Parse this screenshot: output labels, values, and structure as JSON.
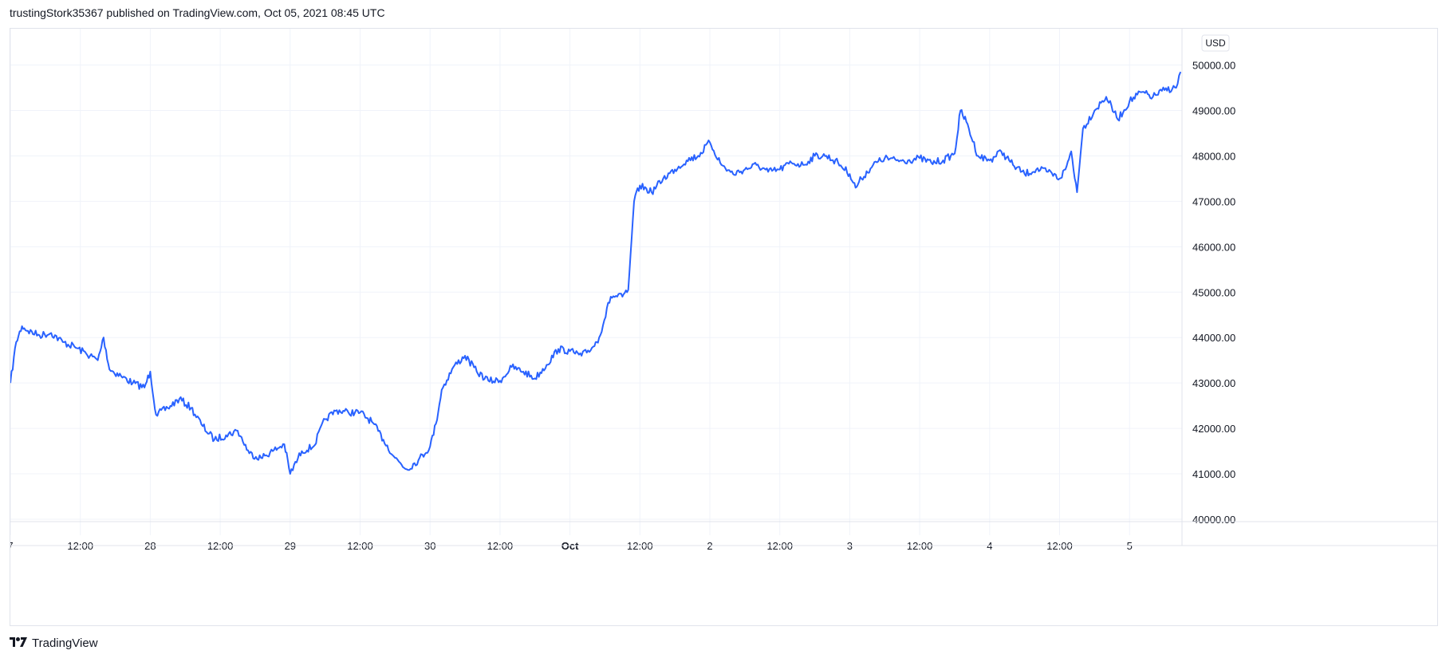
{
  "header": {
    "published_text": "trustingStork35367 published on TradingView.com, Oct 05, 2021 08:45 UTC"
  },
  "footer": {
    "brand_label": "TradingView",
    "logo_icon": "tradingview-logo-icon"
  },
  "colors": {
    "line": "#2962ff",
    "grid": "#f0f3fa",
    "border": "#e0e3eb",
    "text": "#131722"
  },
  "chart_data": {
    "type": "line",
    "currency_label": "USD",
    "ylim": [
      40000,
      50800
    ],
    "y_ticks": [
      40000,
      41000,
      42000,
      43000,
      44000,
      45000,
      46000,
      47000,
      48000,
      49000,
      50000
    ],
    "y_tick_labels": [
      "40000.00",
      "41000.00",
      "42000.00",
      "43000.00",
      "44000.00",
      "45000.00",
      "46000.00",
      "47000.00",
      "48000.00",
      "49000.00",
      "50000.00"
    ],
    "x_domain": [
      "2021-09-27T00:00",
      "2021-10-05T09:00"
    ],
    "x_ticks": [
      {
        "t": "2021-09-27T00:00",
        "label": "7",
        "bold": false
      },
      {
        "t": "2021-09-27T12:00",
        "label": "12:00",
        "bold": false
      },
      {
        "t": "2021-09-28T00:00",
        "label": "28",
        "bold": false
      },
      {
        "t": "2021-09-28T12:00",
        "label": "12:00",
        "bold": false
      },
      {
        "t": "2021-09-29T00:00",
        "label": "29",
        "bold": false
      },
      {
        "t": "2021-09-29T12:00",
        "label": "12:00",
        "bold": false
      },
      {
        "t": "2021-09-30T00:00",
        "label": "30",
        "bold": false
      },
      {
        "t": "2021-09-30T12:00",
        "label": "12:00",
        "bold": false
      },
      {
        "t": "2021-10-01T00:00",
        "label": "Oct",
        "bold": true
      },
      {
        "t": "2021-10-01T12:00",
        "label": "12:00",
        "bold": false
      },
      {
        "t": "2021-10-02T00:00",
        "label": "2",
        "bold": false
      },
      {
        "t": "2021-10-02T12:00",
        "label": "12:00",
        "bold": false
      },
      {
        "t": "2021-10-03T00:00",
        "label": "3",
        "bold": false
      },
      {
        "t": "2021-10-03T12:00",
        "label": "12:00",
        "bold": false
      },
      {
        "t": "2021-10-04T00:00",
        "label": "4",
        "bold": false
      },
      {
        "t": "2021-10-04T12:00",
        "label": "12:00",
        "bold": false
      },
      {
        "t": "2021-10-05T00:00",
        "label": "5",
        "bold": false
      }
    ],
    "grid": true,
    "series": [
      {
        "x": [
          "2021-09-27T00:00",
          "2021-09-27T01:00",
          "2021-09-27T02:00",
          "2021-09-27T03:00",
          "2021-09-27T05:00",
          "2021-09-27T07:00",
          "2021-09-27T09:00",
          "2021-09-27T11:00",
          "2021-09-27T13:00",
          "2021-09-27T15:00",
          "2021-09-27T16:00",
          "2021-09-27T17:00",
          "2021-09-27T19:00",
          "2021-09-27T21:00",
          "2021-09-27T23:00",
          "2021-09-28T00:00",
          "2021-09-28T01:00",
          "2021-09-28T03:00",
          "2021-09-28T05:00",
          "2021-09-28T07:00",
          "2021-09-28T09:00",
          "2021-09-28T11:00",
          "2021-09-28T13:00",
          "2021-09-28T15:00",
          "2021-09-28T17:00",
          "2021-09-28T19:00",
          "2021-09-28T21:00",
          "2021-09-28T23:00",
          "2021-09-29T00:00",
          "2021-09-29T02:00",
          "2021-09-29T04:00",
          "2021-09-29T06:00",
          "2021-09-29T08:00",
          "2021-09-29T10:00",
          "2021-09-29T12:00",
          "2021-09-29T14:00",
          "2021-09-29T16:00",
          "2021-09-29T18:00",
          "2021-09-29T20:00",
          "2021-09-29T22:00",
          "2021-09-30T00:00",
          "2021-09-30T01:00",
          "2021-09-30T02:00",
          "2021-09-30T04:00",
          "2021-09-30T06:00",
          "2021-09-30T08:00",
          "2021-09-30T10:00",
          "2021-09-30T12:00",
          "2021-09-30T14:00",
          "2021-09-30T16:00",
          "2021-09-30T18:00",
          "2021-09-30T20:00",
          "2021-09-30T22:00",
          "2021-10-01T00:00",
          "2021-10-01T02:00",
          "2021-10-01T04:00",
          "2021-10-01T05:00",
          "2021-10-01T07:00",
          "2021-10-01T09:00",
          "2021-10-01T10:00",
          "2021-10-01T11:00",
          "2021-10-01T12:00",
          "2021-10-01T14:00",
          "2021-10-01T16:00",
          "2021-10-01T18:00",
          "2021-10-01T20:00",
          "2021-10-01T22:00",
          "2021-10-02T00:00",
          "2021-10-02T02:00",
          "2021-10-02T04:00",
          "2021-10-02T06:00",
          "2021-10-02T08:00",
          "2021-10-02T10:00",
          "2021-10-02T12:00",
          "2021-10-02T14:00",
          "2021-10-02T16:00",
          "2021-10-02T18:00",
          "2021-10-02T20:00",
          "2021-10-02T22:00",
          "2021-10-03T00:00",
          "2021-10-03T01:00",
          "2021-10-03T02:00",
          "2021-10-03T04:00",
          "2021-10-03T06:00",
          "2021-10-03T08:00",
          "2021-10-03T10:00",
          "2021-10-03T12:00",
          "2021-10-03T14:00",
          "2021-10-03T16:00",
          "2021-10-03T18:00",
          "2021-10-03T19:00",
          "2021-10-03T20:00",
          "2021-10-03T22:00",
          "2021-10-04T00:00",
          "2021-10-04T02:00",
          "2021-10-04T04:00",
          "2021-10-04T06:00",
          "2021-10-04T08:00",
          "2021-10-04T10:00",
          "2021-10-04T12:00",
          "2021-10-04T13:00",
          "2021-10-04T14:00",
          "2021-10-04T15:00",
          "2021-10-04T16:00",
          "2021-10-04T18:00",
          "2021-10-04T20:00",
          "2021-10-04T22:00",
          "2021-10-05T00:00",
          "2021-10-05T02:00",
          "2021-10-05T04:00",
          "2021-10-05T06:00",
          "2021-10-05T08:00",
          "2021-10-05T08:45"
        ],
        "y": [
          43000,
          43900,
          44250,
          44150,
          44050,
          44100,
          43900,
          43800,
          43650,
          43500,
          44000,
          43300,
          43150,
          43000,
          42900,
          43250,
          42300,
          42450,
          42650,
          42450,
          42050,
          41750,
          41850,
          41950,
          41450,
          41350,
          41500,
          41650,
          41000,
          41500,
          41600,
          42200,
          42400,
          42350,
          42350,
          42150,
          41750,
          41350,
          41100,
          41300,
          41600,
          42100,
          42850,
          43350,
          43600,
          43250,
          43050,
          43050,
          43350,
          43250,
          43100,
          43400,
          43750,
          43700,
          43600,
          43800,
          44000,
          44900,
          44900,
          45050,
          47000,
          47350,
          47200,
          47500,
          47700,
          47900,
          48000,
          48300,
          47800,
          47600,
          47700,
          47800,
          47650,
          47700,
          47850,
          47800,
          48000,
          48000,
          47850,
          47600,
          47300,
          47500,
          47800,
          47950,
          47900,
          47900,
          47950,
          47850,
          47900,
          48050,
          49000,
          48750,
          48000,
          47900,
          48100,
          47800,
          47600,
          47700,
          47650,
          47500,
          47700,
          48100,
          47200,
          48600,
          49000,
          49300,
          48800,
          49200,
          49400,
          49300,
          49450,
          49500,
          49850
        ]
      }
    ]
  }
}
